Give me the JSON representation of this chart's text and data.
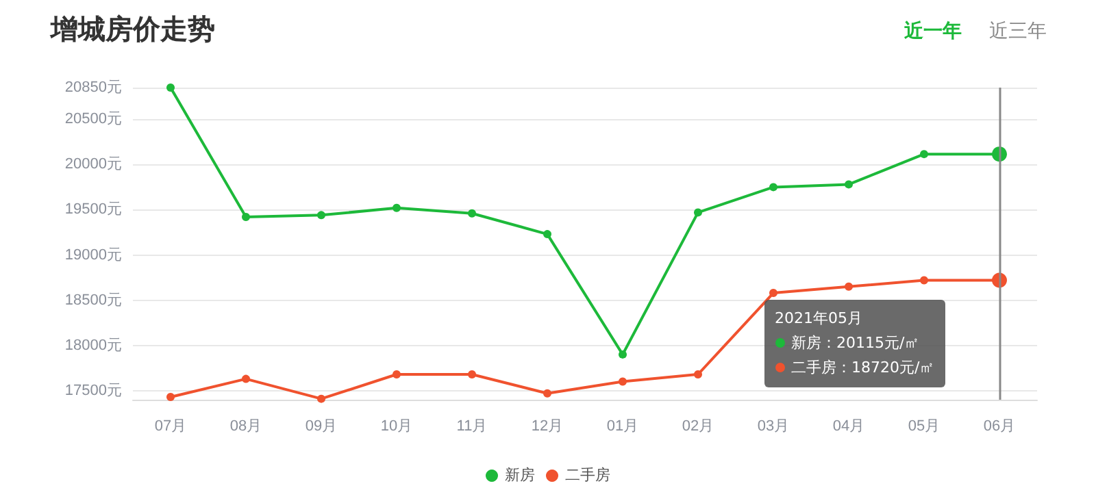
{
  "chart_data": {
    "type": "line",
    "title": "增城房价走势",
    "categories": [
      "07月",
      "08月",
      "09月",
      "10月",
      "11月",
      "12月",
      "01月",
      "02月",
      "03月",
      "04月",
      "05月",
      "06月"
    ],
    "series": [
      {
        "name": "新房",
        "color": "#1db93a",
        "values": [
          20850,
          19420,
          19440,
          19520,
          19460,
          19230,
          17900,
          19470,
          19750,
          19780,
          20115,
          20115
        ]
      },
      {
        "name": "二手房",
        "color": "#f0522e",
        "values": [
          17430,
          17630,
          17410,
          17680,
          17680,
          17470,
          17600,
          17680,
          18580,
          18650,
          18720,
          18720
        ]
      }
    ],
    "ylim": [
      17400,
      20850
    ],
    "yticks": [
      {
        "value": 17500,
        "label": "17500元"
      },
      {
        "value": 18000,
        "label": "18000元"
      },
      {
        "value": 18500,
        "label": "18500元"
      },
      {
        "value": 19000,
        "label": "19000元"
      },
      {
        "value": 19500,
        "label": "19500元"
      },
      {
        "value": 20000,
        "label": "20000元"
      },
      {
        "value": 20500,
        "label": "20500元"
      },
      {
        "value": 20850,
        "label": "20850元"
      }
    ],
    "grid": "y",
    "legend": "bottom",
    "marker": "circle",
    "line_style": "solid",
    "ref_lines": [
      {
        "axis": "x",
        "value": "06月",
        "color": "#888888"
      }
    ],
    "annotations": [
      "近一年",
      "近三年",
      "2021年05月",
      "新房：20115元/㎡",
      "二手房：18720元/㎡"
    ]
  }
}
